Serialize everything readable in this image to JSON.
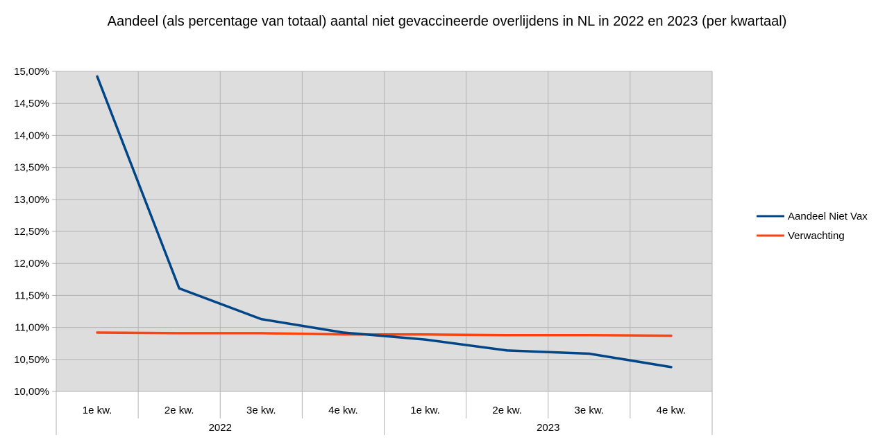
{
  "chart_data": {
    "type": "line",
    "title": "Aandeel (als percentage van totaal) aantal niet gevaccineerde overlijdens in NL in 2022 en 2023 (per kwartaal)",
    "xlabel": "",
    "ylabel": "",
    "categories": [
      "1e kw.",
      "2e kw.",
      "3e kw.",
      "4e kw.",
      "1e kw.",
      "2e kw.",
      "3e kw.",
      "4e kw."
    ],
    "groups": [
      {
        "label": "2022",
        "span": 4
      },
      {
        "label": "2023",
        "span": 4
      }
    ],
    "y_ticks": [
      "10,00%",
      "10,50%",
      "11,00%",
      "11,50%",
      "12,00%",
      "12,50%",
      "13,00%",
      "13,50%",
      "14,00%",
      "14,50%",
      "15,00%"
    ],
    "ylim": [
      10.0,
      15.0
    ],
    "grid": true,
    "legend_position": "right",
    "series": [
      {
        "name": "Aandeel Niet Vax",
        "color": "#004586",
        "values": [
          14.92,
          11.61,
          11.13,
          10.92,
          10.81,
          10.64,
          10.59,
          10.38
        ]
      },
      {
        "name": "Verwachting",
        "color": "#ff420e",
        "values": [
          10.92,
          10.91,
          10.91,
          10.89,
          10.89,
          10.88,
          10.88,
          10.87
        ]
      }
    ],
    "colors": {
      "plot_background": "#dddddd",
      "grid": "#b3b3b3"
    }
  }
}
